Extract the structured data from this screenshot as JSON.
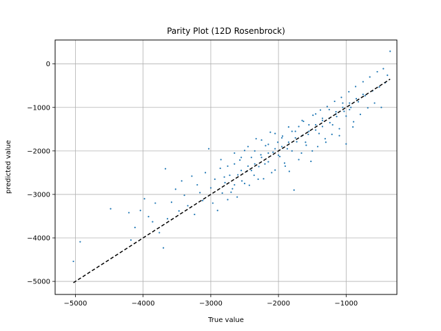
{
  "chart_data": {
    "type": "scatter",
    "title": "Parity Plot (12D Rosenbrock)",
    "xlabel": "True value",
    "ylabel": "predicted value",
    "xlim": [
      -5300,
      -250
    ],
    "ylim": [
      -5300,
      550
    ],
    "x_ticks": [
      -5000,
      -4000,
      -3000,
      -2000,
      -1000
    ],
    "y_ticks": [
      0,
      -1000,
      -2000,
      -3000,
      -4000,
      -5000
    ],
    "x_tick_labels": [
      "−5000",
      "−4000",
      "−3000",
      "−2000",
      "−1000"
    ],
    "y_tick_labels": [
      "0",
      "−1000",
      "−2000",
      "−3000",
      "−4000",
      "−5000"
    ],
    "grid": true,
    "point_color": "#1f77b4",
    "identity_line": {
      "from": -5030,
      "to": -350,
      "style": "dashed",
      "color": "#000000"
    },
    "scatter_points": [
      [
        -5030,
        -4540
      ],
      [
        -4930,
        -4090
      ],
      [
        -4480,
        -3330
      ],
      [
        -4210,
        -3420
      ],
      [
        -4180,
        -4050
      ],
      [
        -4120,
        -3760
      ],
      [
        -4040,
        -3370
      ],
      [
        -3980,
        -3100
      ],
      [
        -3920,
        -3510
      ],
      [
        -3860,
        -3630
      ],
      [
        -3820,
        -3200
      ],
      [
        -3760,
        -3880
      ],
      [
        -3700,
        -4230
      ],
      [
        -3670,
        -2410
      ],
      [
        -3640,
        -3560
      ],
      [
        -3580,
        -3180
      ],
      [
        -3520,
        -2880
      ],
      [
        -3470,
        -3380
      ],
      [
        -3430,
        -2690
      ],
      [
        -3390,
        -3020
      ],
      [
        -3340,
        -3260
      ],
      [
        -3280,
        -2580
      ],
      [
        -3240,
        -3460
      ],
      [
        -3200,
        -2780
      ],
      [
        -3160,
        -2960
      ],
      [
        -3120,
        -3140
      ],
      [
        -3080,
        -2500
      ],
      [
        -3030,
        -1950
      ],
      [
        -3000,
        -2850
      ],
      [
        -2970,
        -3200
      ],
      [
        -2940,
        -2650
      ],
      [
        -2900,
        -3370
      ],
      [
        -2860,
        -2400
      ],
      [
        -2830,
        -2970
      ],
      [
        -2790,
        -2730
      ],
      [
        -2750,
        -3120
      ],
      [
        -2720,
        -2560
      ],
      [
        -2680,
        -2870
      ],
      [
        -2650,
        -2300
      ],
      [
        -2610,
        -3060
      ],
      [
        -2570,
        -2210
      ],
      [
        -2540,
        -2690
      ],
      [
        -2500,
        -1990
      ],
      [
        -2470,
        -2470
      ],
      [
        -2430,
        -2790
      ],
      [
        -2400,
        -2150
      ],
      [
        -2360,
        -2560
      ],
      [
        -2330,
        -1720
      ],
      [
        -2290,
        -2360
      ],
      [
        -2260,
        -2090
      ],
      [
        -2220,
        -2640
      ],
      [
        -2190,
        -1880
      ],
      [
        -2150,
        -2250
      ],
      [
        -2120,
        -1570
      ],
      [
        -2080,
        -2030
      ],
      [
        -2050,
        -2440
      ],
      [
        -2010,
        -1800
      ],
      [
        -1980,
        -2130
      ],
      [
        -1940,
        -1660
      ],
      [
        -1910,
        -2280
      ],
      [
        -1870,
        -1950
      ],
      [
        -1840,
        -2470
      ],
      [
        -1800,
        -1550
      ],
      [
        -1770,
        -2900
      ],
      [
        -1730,
        -1790
      ],
      [
        -1700,
        -1440
      ],
      [
        -1660,
        -2050
      ],
      [
        -1630,
        -1320
      ],
      [
        -1590,
        -1870
      ],
      [
        -1560,
        -1620
      ],
      [
        -1520,
        -2240
      ],
      [
        -1490,
        -1180
      ],
      [
        -1450,
        -1520
      ],
      [
        -1420,
        -1900
      ],
      [
        -1380,
        -1060
      ],
      [
        -1350,
        -1440
      ],
      [
        -1310,
        -1720
      ],
      [
        -1280,
        -980
      ],
      [
        -1240,
        -1350
      ],
      [
        -1210,
        -1620
      ],
      [
        -1170,
        -860
      ],
      [
        -1140,
        -1210
      ],
      [
        -1100,
        -1490
      ],
      [
        -1070,
        -770
      ],
      [
        -1030,
        -1090
      ],
      [
        -1000,
        -1840
      ],
      [
        -960,
        -640
      ],
      [
        -930,
        -1000
      ],
      [
        -890,
        -1330
      ],
      [
        -860,
        -520
      ],
      [
        -820,
        -870
      ],
      [
        -790,
        -1160
      ],
      [
        -750,
        -410
      ],
      [
        -720,
        -730
      ],
      [
        -680,
        -1010
      ],
      [
        -650,
        -300
      ],
      [
        -610,
        -620
      ],
      [
        -580,
        -900
      ],
      [
        -540,
        -180
      ],
      [
        -510,
        -530
      ],
      [
        -480,
        -1000
      ],
      [
        -450,
        -110
      ],
      [
        -420,
        -430
      ],
      [
        -390,
        -260
      ],
      [
        -350,
        290
      ],
      [
        -2650,
        -2780
      ],
      [
        -2550,
        -2450
      ],
      [
        -2450,
        -2350
      ],
      [
        -2350,
        -2300
      ],
      [
        -2250,
        -2150
      ],
      [
        -2150,
        -2050
      ],
      [
        -2050,
        -1950
      ],
      [
        -1950,
        -1900
      ],
      [
        -1850,
        -1800
      ],
      [
        -1750,
        -1700
      ],
      [
        -1650,
        -1650
      ],
      [
        -1550,
        -1550
      ],
      [
        -1450,
        -1400
      ],
      [
        -1350,
        -1300
      ],
      [
        -1250,
        -1250
      ],
      [
        -1150,
        -1100
      ],
      [
        -1050,
        -1000
      ],
      [
        -950,
        -900
      ],
      [
        -850,
        -800
      ],
      [
        -750,
        -700
      ],
      [
        -2800,
        -2600
      ],
      [
        -2700,
        -2950
      ],
      [
        -2600,
        -2550
      ],
      [
        -2500,
        -2750
      ],
      [
        -2400,
        -2450
      ],
      [
        -2300,
        -2650
      ],
      [
        -2200,
        -2300
      ],
      [
        -2100,
        -2500
      ],
      [
        -2000,
        -2100
      ],
      [
        -1900,
        -2350
      ],
      [
        -1800,
        -2000
      ],
      [
        -1700,
        -2200
      ],
      [
        -1600,
        -1800
      ],
      [
        -1500,
        -2000
      ],
      [
        -1400,
        -1600
      ],
      [
        -1300,
        -1800
      ],
      [
        -1200,
        -1400
      ],
      [
        -1100,
        -1650
      ],
      [
        -1000,
        -1200
      ],
      [
        -900,
        -1450
      ],
      [
        -2850,
        -2200
      ],
      [
        -2750,
        -2350
      ],
      [
        -2650,
        -2050
      ],
      [
        -2550,
        -2150
      ],
      [
        -2450,
        -1900
      ],
      [
        -2350,
        -2000
      ],
      [
        -2250,
        -1750
      ],
      [
        -2150,
        -1850
      ],
      [
        -2050,
        -1600
      ],
      [
        -1950,
        -1700
      ],
      [
        -1850,
        -1450
      ],
      [
        -1750,
        -1550
      ],
      [
        -1650,
        -1300
      ],
      [
        -1550,
        -1400
      ],
      [
        -1450,
        -1150
      ],
      [
        -1350,
        -1250
      ],
      [
        -1250,
        -1050
      ],
      [
        -1150,
        -1150
      ],
      [
        -1050,
        -900
      ],
      [
        -950,
        -1050
      ]
    ]
  }
}
